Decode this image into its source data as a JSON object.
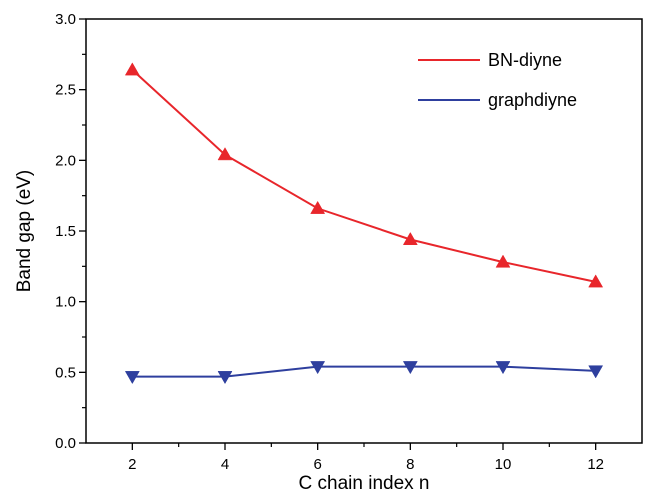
{
  "chart_data": {
    "type": "line",
    "xlabel": "C chain index n",
    "ylabel": "Band gap (eV)",
    "xlim": [
      1,
      13
    ],
    "ylim": [
      0.0,
      3.0
    ],
    "x_ticks": [
      2,
      4,
      6,
      8,
      10,
      12
    ],
    "x_tick_labels": [
      "2",
      "4",
      "6",
      "8",
      "10",
      "12"
    ],
    "y_ticks": [
      0.0,
      0.5,
      1.0,
      1.5,
      2.0,
      2.5,
      3.0
    ],
    "y_tick_labels": [
      "0.0",
      "0.5",
      "1.0",
      "1.5",
      "2.0",
      "2.5",
      "3.0"
    ],
    "grid": false,
    "legend_position": "top-right",
    "x": [
      2,
      4,
      6,
      8,
      10,
      12
    ],
    "series": [
      {
        "name": "BN-diyne",
        "color": "#e8262b",
        "marker": "triangle-up",
        "values": [
          2.64,
          2.04,
          1.66,
          1.44,
          1.28,
          1.14
        ]
      },
      {
        "name": "graphdiyne",
        "color": "#2e3f9e",
        "marker": "triangle-down",
        "values": [
          0.47,
          0.47,
          0.54,
          0.54,
          0.54,
          0.51
        ]
      }
    ]
  }
}
